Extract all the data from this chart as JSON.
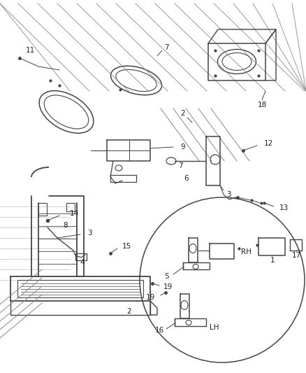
{
  "bg_color": "#ffffff",
  "line_color": "#444444",
  "text_color": "#222222",
  "font_size": 7.5,
  "dpi": 100,
  "figsize": [
    4.38,
    5.33
  ]
}
